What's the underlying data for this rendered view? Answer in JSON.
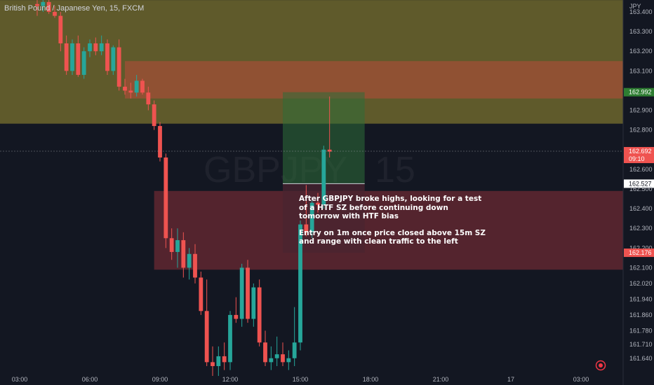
{
  "header": {
    "symbol_title": "British Pound / Japanese Yen, 15, FXCM"
  },
  "watermark": {
    "symbol": "GBPJPY",
    "interval": "15"
  },
  "annotation": {
    "paragraph_1": "After GBPJPY broke highs, looking for a test of a HTF SZ before continuing down tomorrow with HTF bias",
    "paragraph_2": "Entry on 1m once price closed above 15m SZ and range with clean traffic to the left"
  },
  "price_axis": {
    "currency": "JPY",
    "tick_labels": [
      "163.400",
      "163.300",
      "163.200",
      "163.100",
      "162.992",
      "162.900",
      "162.800",
      "162.692",
      "09:10",
      "162.600",
      "162.527",
      "162.500",
      "162.400",
      "162.300",
      "162.200",
      "162.176",
      "162.100",
      "162.020",
      "161.940",
      "161.860",
      "161.780",
      "161.710",
      "161.640"
    ]
  },
  "price_tags": {
    "target": "162.992",
    "last_price": "162.692",
    "countdown": "09:10",
    "entry": "162.527",
    "stop": "162.176"
  },
  "colors": {
    "background": "#131722",
    "bull": "#26a69a",
    "bear": "#ef5350",
    "supply_zone_htf": "#5f5a2b",
    "demand_zone": "#5c2630",
    "target_box": "#2e6e39",
    "stop_box": "#4a2430"
  },
  "chart_data": {
    "type": "candlestick",
    "title": "British Pound / Japanese Yen, 15, FXCM",
    "x_tick_labels": [
      "03:00",
      "06:00",
      "09:00",
      "12:00",
      "15:00",
      "18:00",
      "21:00",
      "17",
      "03:00"
    ],
    "y_unit": "JPY",
    "y_range": [
      161.59,
      163.46
    ],
    "grid": false,
    "zones": [
      {
        "name": "htf-supply-zone",
        "from_time": "01:45",
        "to_time": "03:30",
        "y_low": 162.832,
        "y_high": 163.46
      },
      {
        "name": "upper-red-zone",
        "from_time": "07:30",
        "to_time": "03:30",
        "y_low": 162.96,
        "y_high": 163.15
      },
      {
        "name": "lower-red-zone",
        "from_time": "08:45",
        "to_time": "03:30",
        "y_low": 162.09,
        "y_high": 162.49
      }
    ],
    "position": {
      "type": "long",
      "entry_time": "14:15",
      "exit_time": "17:45",
      "entry": 162.527,
      "target": 162.992,
      "stop": 162.176
    },
    "last_price": 162.692,
    "candles": [
      {
        "t": "03:45",
        "o": 163.44,
        "h": 163.46,
        "l": 163.38,
        "c": 163.43
      },
      {
        "t": "04:00",
        "o": 163.43,
        "h": 163.46,
        "l": 163.4,
        "c": 163.45
      },
      {
        "t": "04:15",
        "o": 163.45,
        "h": 163.47,
        "l": 163.39,
        "c": 163.4
      },
      {
        "t": "04:30",
        "o": 163.4,
        "h": 163.43,
        "l": 163.37,
        "c": 163.38
      },
      {
        "t": "04:45",
        "o": 163.38,
        "h": 163.4,
        "l": 163.2,
        "c": 163.24
      },
      {
        "t": "05:00",
        "o": 163.24,
        "h": 163.28,
        "l": 163.08,
        "c": 163.1
      },
      {
        "t": "05:15",
        "o": 163.1,
        "h": 163.26,
        "l": 163.08,
        "c": 163.24
      },
      {
        "t": "05:30",
        "o": 163.24,
        "h": 163.28,
        "l": 163.07,
        "c": 163.08
      },
      {
        "t": "05:45",
        "o": 163.08,
        "h": 163.22,
        "l": 163.06,
        "c": 163.2
      },
      {
        "t": "06:00",
        "o": 163.2,
        "h": 163.26,
        "l": 163.17,
        "c": 163.24
      },
      {
        "t": "06:15",
        "o": 163.24,
        "h": 163.27,
        "l": 163.18,
        "c": 163.2
      },
      {
        "t": "06:30",
        "o": 163.2,
        "h": 163.28,
        "l": 163.18,
        "c": 163.24
      },
      {
        "t": "06:45",
        "o": 163.24,
        "h": 163.26,
        "l": 163.08,
        "c": 163.1
      },
      {
        "t": "07:00",
        "o": 163.1,
        "h": 163.23,
        "l": 163.08,
        "c": 163.22
      },
      {
        "t": "07:15",
        "o": 163.22,
        "h": 163.26,
        "l": 163.0,
        "c": 163.02
      },
      {
        "t": "07:30",
        "o": 163.02,
        "h": 163.06,
        "l": 162.98,
        "c": 163.0
      },
      {
        "t": "07:45",
        "o": 163.0,
        "h": 163.04,
        "l": 162.96,
        "c": 162.99
      },
      {
        "t": "08:00",
        "o": 162.99,
        "h": 163.08,
        "l": 162.97,
        "c": 163.05
      },
      {
        "t": "08:15",
        "o": 163.05,
        "h": 163.06,
        "l": 162.98,
        "c": 162.99
      },
      {
        "t": "08:30",
        "o": 162.99,
        "h": 163.02,
        "l": 162.9,
        "c": 162.93
      },
      {
        "t": "08:45",
        "o": 162.93,
        "h": 162.95,
        "l": 162.8,
        "c": 162.82
      },
      {
        "t": "09:00",
        "o": 162.82,
        "h": 162.84,
        "l": 162.64,
        "c": 162.66
      },
      {
        "t": "09:15",
        "o": 162.66,
        "h": 162.68,
        "l": 162.2,
        "c": 162.25
      },
      {
        "t": "09:30",
        "o": 162.25,
        "h": 162.3,
        "l": 162.14,
        "c": 162.18
      },
      {
        "t": "09:45",
        "o": 162.18,
        "h": 162.3,
        "l": 162.1,
        "c": 162.24
      },
      {
        "t": "10:00",
        "o": 162.24,
        "h": 162.28,
        "l": 162.05,
        "c": 162.1
      },
      {
        "t": "10:15",
        "o": 162.1,
        "h": 162.2,
        "l": 162.04,
        "c": 162.17
      },
      {
        "t": "10:30",
        "o": 162.17,
        "h": 162.22,
        "l": 162.02,
        "c": 162.05
      },
      {
        "t": "10:45",
        "o": 162.05,
        "h": 162.08,
        "l": 161.86,
        "c": 161.88
      },
      {
        "t": "11:00",
        "o": 161.88,
        "h": 162.04,
        "l": 161.6,
        "c": 161.62
      },
      {
        "t": "11:15",
        "o": 161.62,
        "h": 161.7,
        "l": 161.55,
        "c": 161.6
      },
      {
        "t": "11:30",
        "o": 161.6,
        "h": 161.7,
        "l": 161.55,
        "c": 161.65
      },
      {
        "t": "11:45",
        "o": 161.65,
        "h": 161.72,
        "l": 161.58,
        "c": 161.62
      },
      {
        "t": "12:00",
        "o": 161.62,
        "h": 161.88,
        "l": 161.58,
        "c": 161.86
      },
      {
        "t": "12:15",
        "o": 161.86,
        "h": 161.95,
        "l": 161.82,
        "c": 161.84
      },
      {
        "t": "12:30",
        "o": 161.84,
        "h": 162.12,
        "l": 161.8,
        "c": 162.1
      },
      {
        "t": "12:45",
        "o": 162.1,
        "h": 162.14,
        "l": 161.82,
        "c": 161.84
      },
      {
        "t": "13:00",
        "o": 161.84,
        "h": 162.02,
        "l": 161.8,
        "c": 162.0
      },
      {
        "t": "13:15",
        "o": 162.0,
        "h": 162.04,
        "l": 161.7,
        "c": 161.72
      },
      {
        "t": "13:30",
        "o": 161.72,
        "h": 161.78,
        "l": 161.6,
        "c": 161.62
      },
      {
        "t": "13:45",
        "o": 161.62,
        "h": 161.7,
        "l": 161.58,
        "c": 161.64
      },
      {
        "t": "14:00",
        "o": 161.64,
        "h": 161.75,
        "l": 161.6,
        "c": 161.66
      },
      {
        "t": "14:15",
        "o": 161.66,
        "h": 161.72,
        "l": 161.6,
        "c": 161.62
      },
      {
        "t": "14:30",
        "o": 161.62,
        "h": 161.68,
        "l": 161.58,
        "c": 161.64
      },
      {
        "t": "14:45",
        "o": 161.64,
        "h": 161.9,
        "l": 161.6,
        "c": 161.72
      },
      {
        "t": "15:00",
        "o": 161.72,
        "h": 162.34,
        "l": 161.68,
        "c": 162.32
      },
      {
        "t": "15:15",
        "o": 162.32,
        "h": 162.52,
        "l": 162.26,
        "c": 162.28
      },
      {
        "t": "15:30",
        "o": 162.28,
        "h": 162.44,
        "l": 162.25,
        "c": 162.43
      },
      {
        "t": "15:45",
        "o": 162.43,
        "h": 162.48,
        "l": 162.38,
        "c": 162.42
      },
      {
        "t": "16:00",
        "o": 162.42,
        "h": 162.72,
        "l": 162.4,
        "c": 162.7
      },
      {
        "t": "16:15",
        "o": 162.7,
        "h": 162.97,
        "l": 162.66,
        "c": 162.69
      }
    ]
  }
}
